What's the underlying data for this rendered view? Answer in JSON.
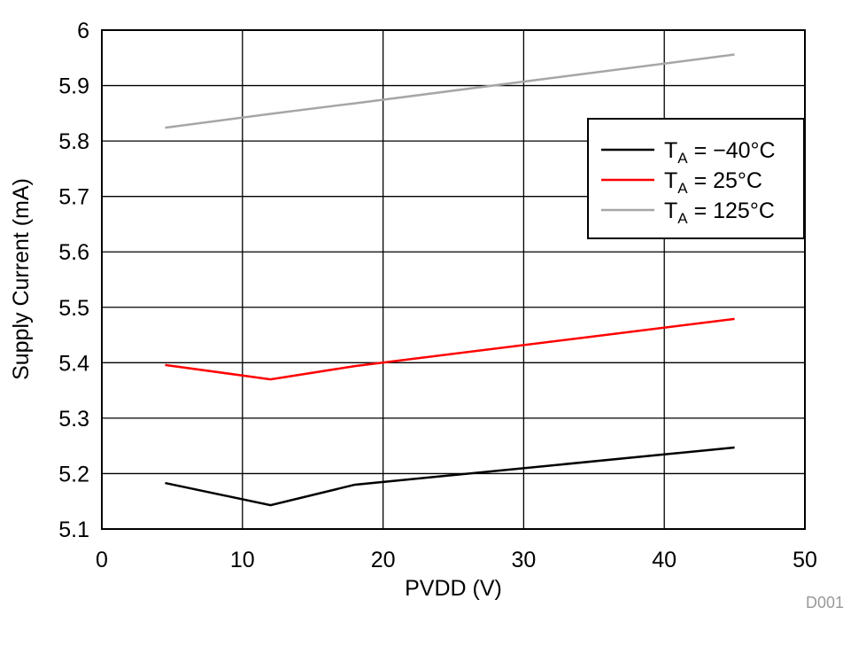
{
  "chart_data": {
    "type": "line",
    "title": "",
    "xlabel": "PVDD (V)",
    "ylabel": "Supply Current (mA)",
    "xlim": [
      0,
      50
    ],
    "ylim": [
      5.1,
      6.0
    ],
    "xticks": [
      0,
      10,
      20,
      30,
      40,
      50
    ],
    "yticks": [
      5.1,
      5.2,
      5.3,
      5.4,
      5.5,
      5.6,
      5.7,
      5.8,
      5.9,
      6
    ],
    "xtick_labels": [
      "0",
      "10",
      "20",
      "30",
      "40",
      "50"
    ],
    "ytick_labels": [
      "5.1",
      "5.2",
      "5.3",
      "5.4",
      "5.5",
      "5.6",
      "5.7",
      "5.8",
      "5.9",
      "6"
    ],
    "grid": true,
    "legend_position": "top-right",
    "series": [
      {
        "name": "TA = −40°C",
        "label_main": "T",
        "label_sub": "A",
        "label_rest": " = −40°C",
        "color": "#000000",
        "x": [
          4.5,
          12,
          18,
          45
        ],
        "y": [
          5.183,
          5.143,
          5.18,
          5.247
        ]
      },
      {
        "name": "TA = 25°C",
        "label_main": "T",
        "label_sub": "A",
        "label_rest": " = 25°C",
        "color": "#ff0000",
        "x": [
          4.5,
          12,
          18,
          45
        ],
        "y": [
          5.396,
          5.37,
          5.394,
          5.479
        ]
      },
      {
        "name": "TA = 125°C",
        "label_main": "T",
        "label_sub": "A",
        "label_rest": " = 125°C",
        "color": "#a6a6a6",
        "x": [
          4.5,
          12,
          18,
          45
        ],
        "y": [
          5.824,
          5.849,
          5.868,
          5.956
        ]
      }
    ],
    "annotation": "D001"
  }
}
